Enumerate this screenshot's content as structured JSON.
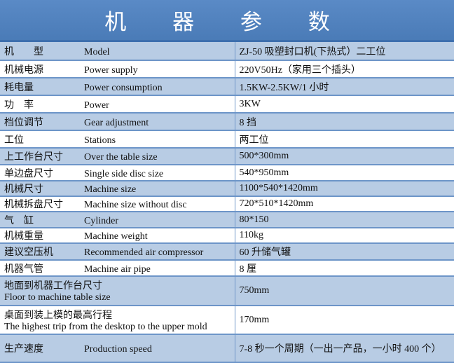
{
  "title": "机 器 参 数",
  "rows": [
    {
      "cn": "机　　型",
      "en": "Model",
      "value": "ZJ-50 吸塑封口机(下热式）二工位"
    },
    {
      "cn": "机械电源",
      "en": "Power supply",
      "value": "220V50Hz（家用三个插头）"
    },
    {
      "cn": "耗电量",
      "en": "Power consumption",
      "value": "1.5KW-2.5KW/1 小时"
    },
    {
      "cn": "功　率",
      "en": "Power",
      "value": "3KW"
    },
    {
      "cn": "档位调节",
      "en": "Gear adjustment",
      "value": "8 挡"
    },
    {
      "cn": "工位",
      "en": "Stations",
      "value": "两工位"
    },
    {
      "cn": "上工作台尺寸",
      "en": "Over the table size",
      "value": "500*300mm"
    },
    {
      "cn": "单边盘尺寸",
      "en": "Single side disc size",
      "value": "540*950mm"
    },
    {
      "cn": "机械尺寸",
      "en": "Machine size",
      "value": "1100*540*1420mm"
    },
    {
      "cn": "机械拆盘尺寸",
      "en": "Machine size without disc",
      "value": "720*510*1420mm"
    },
    {
      "cn": "气　缸",
      "en": "Cylinder",
      "value": "80*150"
    },
    {
      "cn": "机械重量",
      "en": "Machine weight",
      "value": "110kg"
    },
    {
      "cn": "建议空压机",
      "en": "Recommended air compressor",
      "value": "60 升储气罐"
    },
    {
      "cn": "机器气管",
      "en": "Machine air pipe",
      "value": "8 厘"
    },
    {
      "cn": "地面到机器工作台尺寸",
      "en": "Floor to machine table size",
      "value": "750mm"
    },
    {
      "cn": "桌面到装上模的最高行程",
      "en": "The highest trip from the desktop to the upper mold",
      "value": "170mm"
    },
    {
      "cn": "生产速度",
      "en": "Production speed",
      "value": "7-8 秒一个周期（一出一产品，一小时 400 个）"
    }
  ]
}
